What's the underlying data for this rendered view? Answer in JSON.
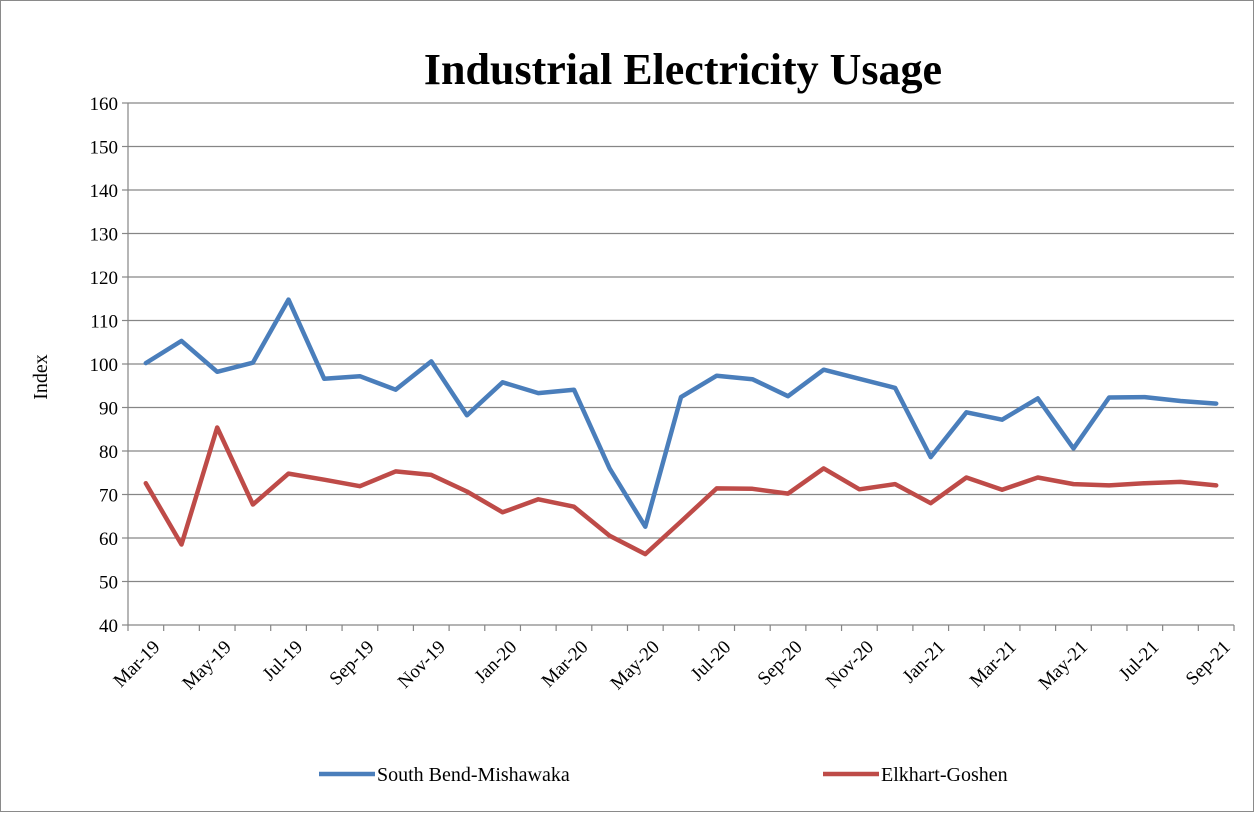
{
  "chart_data": {
    "type": "line",
    "title": "Industrial Electricity Usage",
    "xlabel": "",
    "ylabel": "Index",
    "ylim": [
      40,
      160
    ],
    "yticks": [
      40,
      50,
      60,
      70,
      80,
      90,
      100,
      110,
      120,
      130,
      140,
      150,
      160
    ],
    "x": [
      "Mar-19",
      "Apr-19",
      "May-19",
      "Jun-19",
      "Jul-19",
      "Aug-19",
      "Sep-19",
      "Oct-19",
      "Nov-19",
      "Dec-19",
      "Jan-20",
      "Feb-20",
      "Mar-20",
      "Apr-20",
      "May-20",
      "Jun-20",
      "Jul-20",
      "Aug-20",
      "Sep-20",
      "Oct-20",
      "Nov-20",
      "Dec-20",
      "Jan-21",
      "Feb-21",
      "Mar-21",
      "Apr-21",
      "May-21",
      "Jun-21",
      "Jul-21",
      "Aug-21",
      "Sep-21"
    ],
    "xtick_labels": [
      "Mar-19",
      "May-19",
      "Jul-19",
      "Sep-19",
      "Nov-19",
      "Jan-20",
      "Mar-20",
      "May-20",
      "Jul-20",
      "Sep-20",
      "Nov-20",
      "Jan-21",
      "Mar-21",
      "May-21",
      "Jul-21",
      "Sep-21"
    ],
    "grid": "horizontal",
    "legend_position": "bottom",
    "series": [
      {
        "name": "South Bend-Mishawaka",
        "color": "#4a7ebb",
        "values": [
          100.2,
          105.3,
          98.2,
          100.3,
          114.8,
          96.6,
          97.2,
          94.1,
          100.6,
          88.2,
          95.8,
          93.3,
          94.1,
          76.0,
          62.6,
          92.4,
          97.3,
          96.5,
          92.6,
          98.7,
          96.6,
          94.5,
          78.6,
          88.9,
          87.2,
          92.1,
          80.6,
          92.3,
          92.4,
          91.5,
          90.9
        ]
      },
      {
        "name": "Elkhart-Goshen",
        "color": "#be4b48",
        "values": [
          72.6,
          58.5,
          85.4,
          67.7,
          74.8,
          73.4,
          71.9,
          75.3,
          74.5,
          70.7,
          65.9,
          68.9,
          67.2,
          60.5,
          56.3,
          63.8,
          71.4,
          71.3,
          70.2,
          76.0,
          71.2,
          72.4,
          68.0,
          73.9,
          71.1,
          73.9,
          72.4,
          72.1,
          72.6,
          72.9,
          72.1
        ]
      }
    ]
  }
}
